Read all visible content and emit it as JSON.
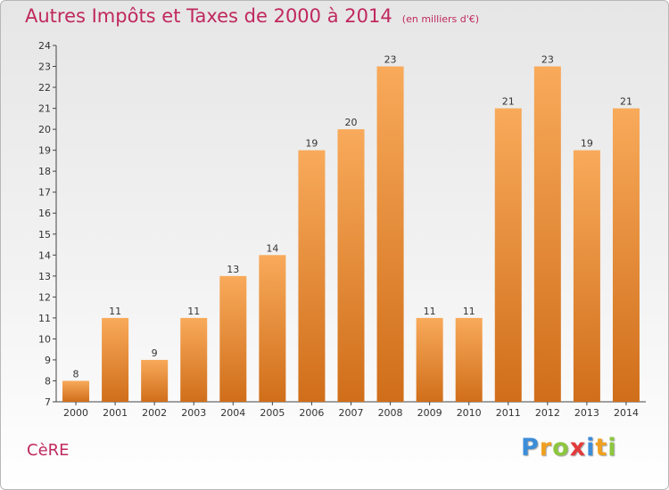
{
  "header": {
    "title": "Autres Impôts et Taxes de 2000 à 2014",
    "unit": "(en milliers d'€)"
  },
  "footer": {
    "commune": "CèRE",
    "logo_letters": [
      "P",
      "r",
      "o",
      "x",
      "i",
      "t",
      "i"
    ],
    "logo_colors": [
      "#3c8dd8",
      "#f0a020",
      "#8dc63f",
      "#e23b3b",
      "#3c8dd8",
      "#f0a020",
      "#8dc63f"
    ]
  },
  "colors": {
    "bar_light": "#f8aa5a",
    "bar_dark": "#d06e1a",
    "title": "#c0285e"
  },
  "chart_data": {
    "type": "bar",
    "title": "Autres Impôts et Taxes de 2000 à 2014",
    "categories": [
      "2000",
      "2001",
      "2002",
      "2003",
      "2004",
      "2005",
      "2006",
      "2007",
      "2008",
      "2009",
      "2010",
      "2011",
      "2012",
      "2013",
      "2014"
    ],
    "values": [
      8,
      11,
      9,
      11,
      13,
      14,
      19,
      20,
      23,
      11,
      11,
      21,
      23,
      19,
      21
    ],
    "ylim": [
      7,
      24
    ],
    "yticks": [
      7,
      8,
      9,
      10,
      11,
      12,
      13,
      14,
      15,
      16,
      17,
      18,
      19,
      20,
      21,
      22,
      23,
      24
    ],
    "grid": false,
    "data_labels": true
  }
}
